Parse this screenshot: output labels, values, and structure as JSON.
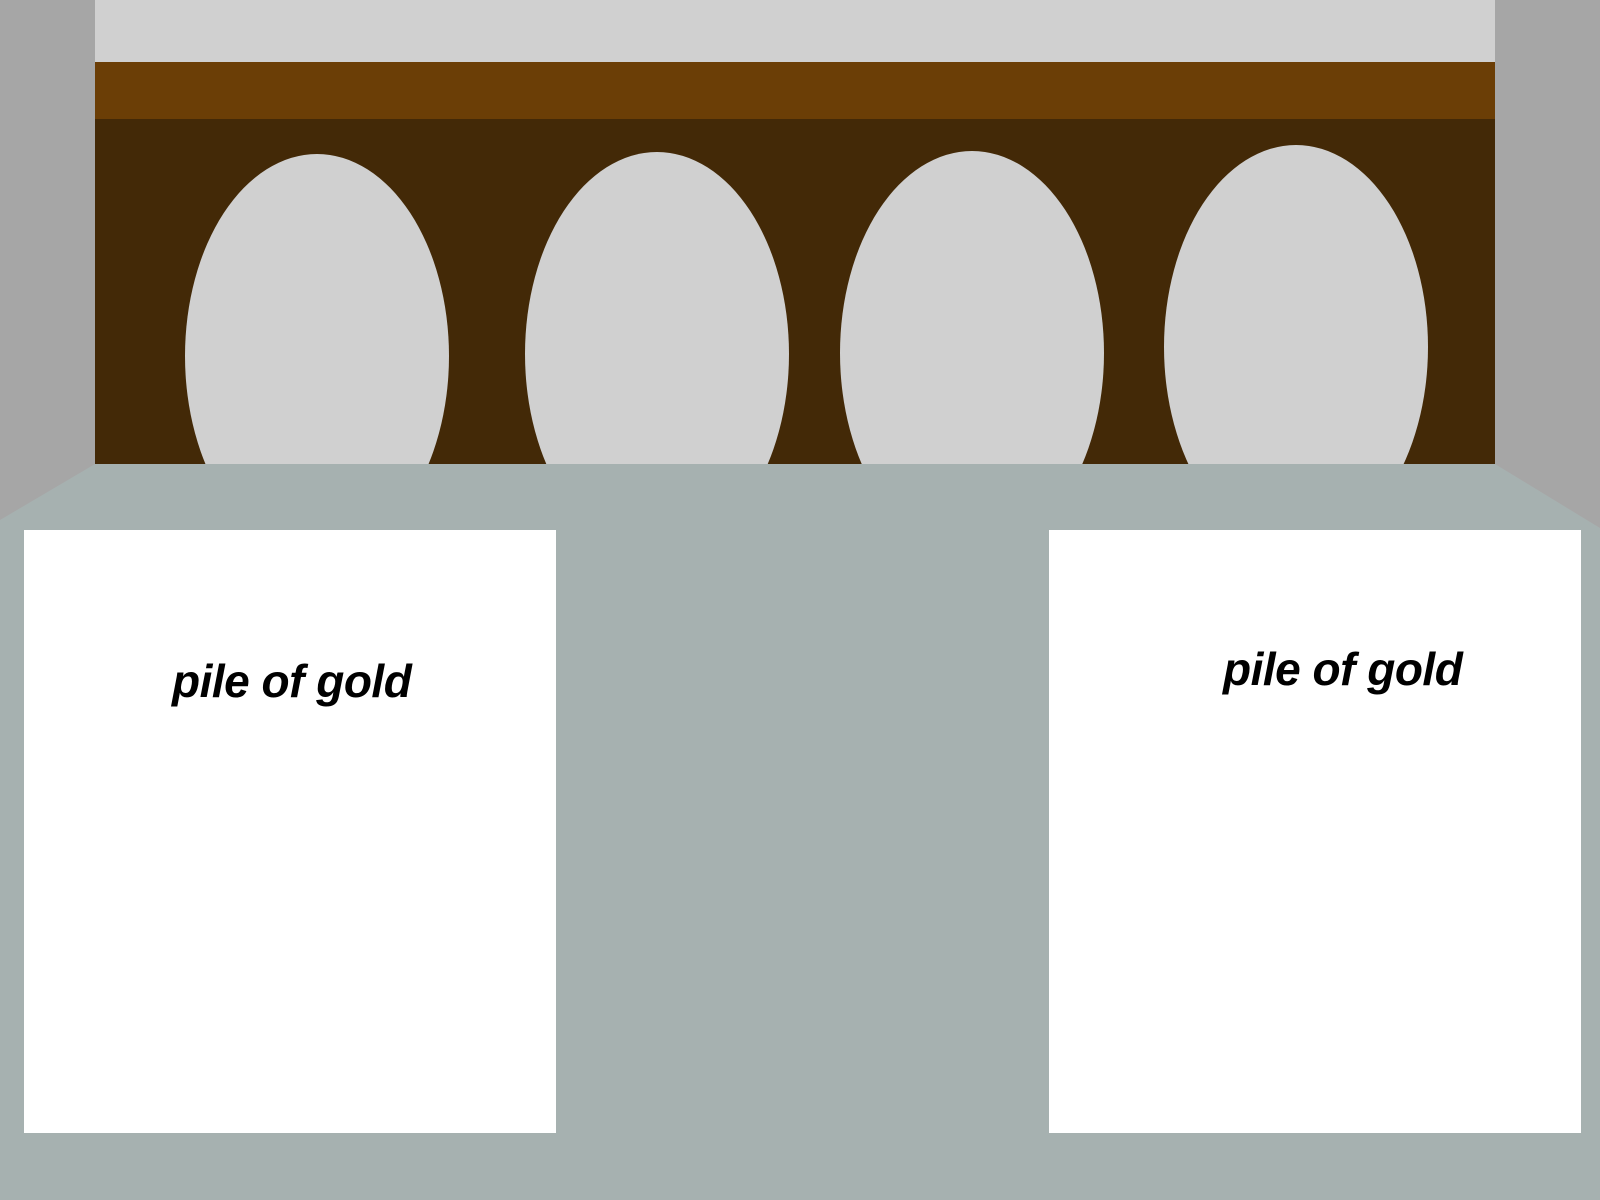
{
  "scene": {
    "colors": {
      "side_wall": "#a6a6a6",
      "ceiling": "#d0d0d0",
      "beam": "#6b3e06",
      "back_wall": "#432907",
      "arch_window": "#d0d0d0",
      "floor": "#a6b1b0",
      "panel": "#ffffff",
      "label_text": "#000000"
    },
    "arch_windows": [
      "arch-window",
      "arch-window",
      "arch-window",
      "arch-window"
    ],
    "items": [
      {
        "label": "pile of gold"
      },
      {
        "label": "pile of gold"
      }
    ]
  }
}
